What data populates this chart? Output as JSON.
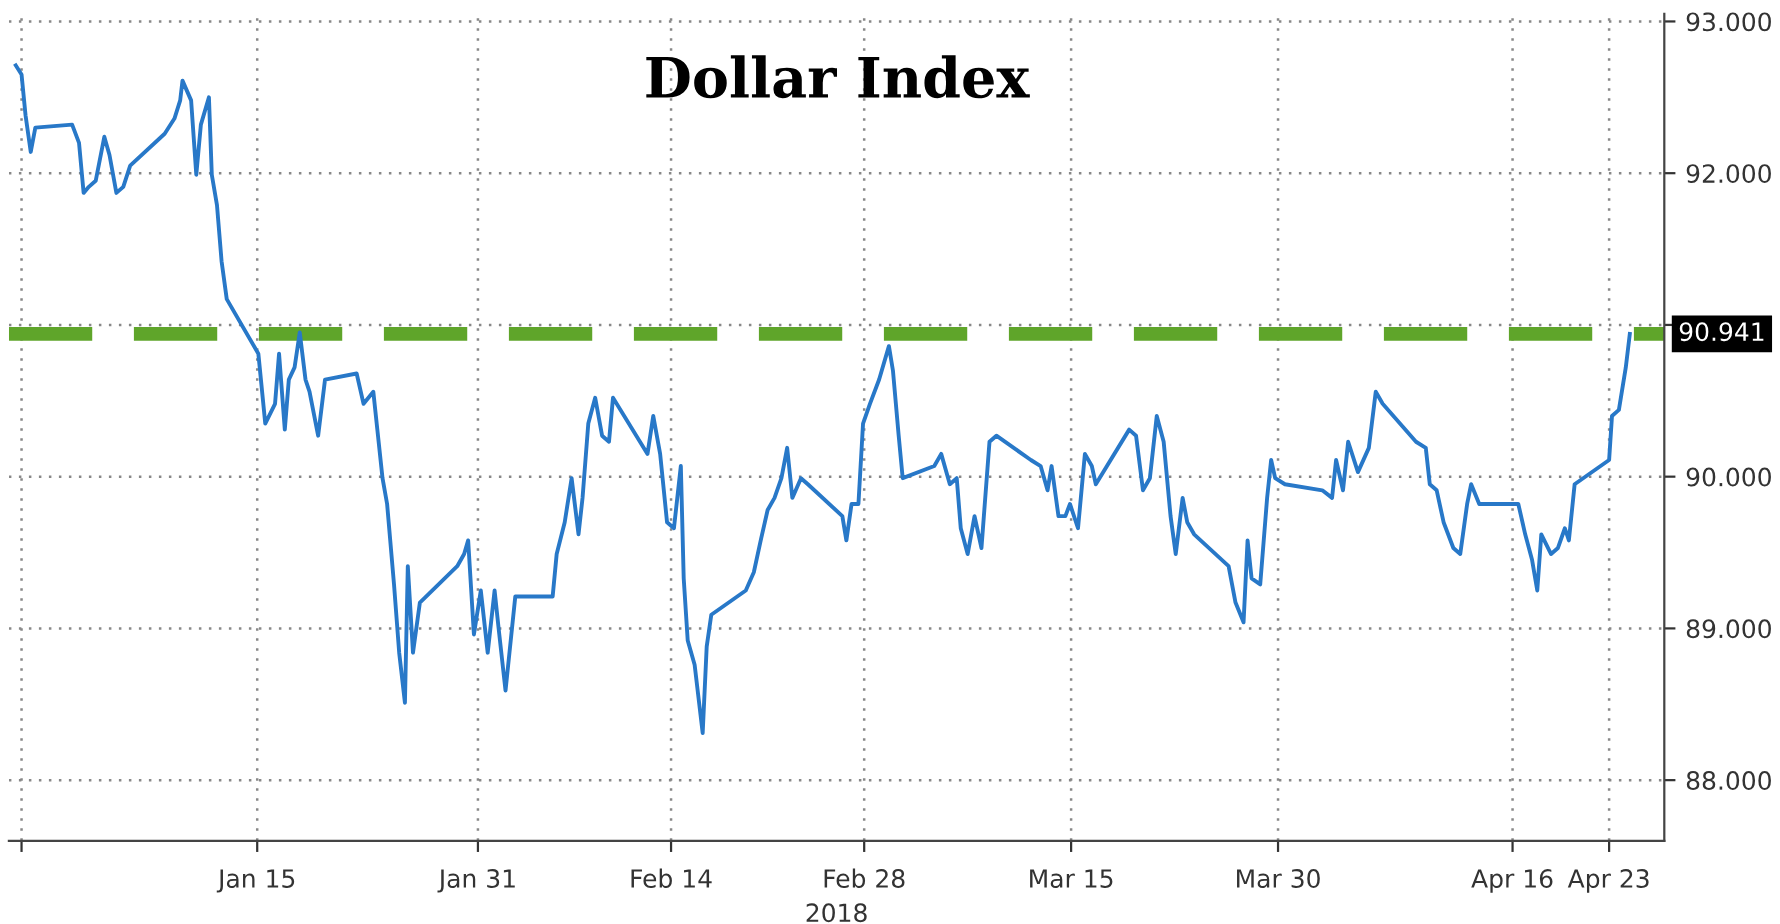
{
  "chart_data": {
    "type": "line",
    "title": "Dollar Index",
    "xlabel": "2018",
    "series": [
      {
        "color": "#2878c8",
        "x": [
          "2017-12-28T12:00",
          "2017-12-28T22:00",
          "2017-12-29T05:00",
          "2017-12-29T14:00",
          "2017-12-29T22:00",
          "2018-01-01T14:00",
          "2018-01-02T02:00",
          "2018-01-02T10:00",
          "2018-01-02T19:00",
          "2018-01-03T07:00",
          "2018-01-03T22:00",
          "2018-01-04T07:00",
          "2018-01-04T19:00",
          "2018-01-05T07:00",
          "2018-01-05T19:00",
          "2018-01-08T07:00",
          "2018-01-09T00:00",
          "2018-01-09T10:00",
          "2018-01-09T14:00",
          "2018-01-10T05:00",
          "2018-01-10T14:00",
          "2018-01-10T22:00",
          "2018-01-11T12:00",
          "2018-01-11T17:00",
          "2018-01-12T02:00",
          "2018-01-12T10:00",
          "2018-01-12T19:00",
          "2018-01-15T02:00",
          "2018-01-15T14:00",
          "2018-01-16T07:00",
          "2018-01-16T14:00",
          "2018-01-17T00:00",
          "2018-01-17T07:00",
          "2018-01-17T17:00",
          "2018-01-18T02:00",
          "2018-01-18T12:00",
          "2018-01-18T19:00",
          "2018-01-19T10:00",
          "2018-01-19T22:00",
          "2018-01-22T05:00",
          "2018-01-22T17:00",
          "2018-01-23T10:00",
          "2018-01-23T17:00",
          "2018-01-24T02:00",
          "2018-01-24T10:00",
          "2018-01-24T22:00",
          "2018-01-25T07:00",
          "2018-01-25T17:00",
          "2018-01-25T22:00",
          "2018-01-26T07:00",
          "2018-01-26T19:00",
          "2018-01-29T12:00",
          "2018-01-30T00:00",
          "2018-01-30T07:00",
          "2018-01-30T17:00",
          "2018-01-31T05:00",
          "2018-01-31T17:00",
          "2018-02-01T05:00",
          "2018-02-01T12:00",
          "2018-02-02T00:00",
          "2018-02-02T17:00",
          "2018-02-05T10:00",
          "2018-02-05T17:00",
          "2018-02-06T07:00",
          "2018-02-06T19:00",
          "2018-02-07T07:00",
          "2018-02-07T14:00",
          "2018-02-08T00:00",
          "2018-02-08T12:00",
          "2018-02-09T00:00",
          "2018-02-09T12:00",
          "2018-02-09T19:00",
          "2018-02-12T07:00",
          "2018-02-12T17:00",
          "2018-02-13T05:00",
          "2018-02-13T17:00",
          "2018-02-14T05:00",
          "2018-02-14T17:00",
          "2018-02-14T22:00",
          "2018-02-15T05:00",
          "2018-02-15T17:00",
          "2018-02-16T07:00",
          "2018-02-16T14:00",
          "2018-02-16T22:00",
          "2018-02-19T10:00",
          "2018-02-20T00:00",
          "2018-02-20T12:00",
          "2018-02-21T00:00",
          "2018-02-21T12:00",
          "2018-02-22T00:00",
          "2018-02-22T10:00",
          "2018-02-22T19:00",
          "2018-02-23T10:00",
          "2018-02-23T22:00",
          "2018-02-26T10:00",
          "2018-02-26T17:00",
          "2018-02-27T02:00",
          "2018-02-27T14:00",
          "2018-02-27T22:00",
          "2018-02-28T10:00",
          "2018-03-01T02:00",
          "2018-03-01T19:00",
          "2018-03-02T02:00",
          "2018-03-02T12:00",
          "2018-03-02T19:00",
          "2018-03-05T02:00",
          "2018-03-05T14:00",
          "2018-03-06T05:00",
          "2018-03-06T17:00",
          "2018-03-07T00:00",
          "2018-03-07T12:00",
          "2018-03-08T00:00",
          "2018-03-08T12:00",
          "2018-03-09T02:00",
          "2018-03-09T14:00",
          "2018-03-12T02:00",
          "2018-03-12T19:00",
          "2018-03-13T07:00",
          "2018-03-13T14:00",
          "2018-03-14T02:00",
          "2018-03-14T14:00",
          "2018-03-14T22:00",
          "2018-03-15T12:00",
          "2018-03-16T00:00",
          "2018-03-16T12:00",
          "2018-03-16T19:00",
          "2018-03-19T05:00",
          "2018-03-19T17:00",
          "2018-03-20T05:00",
          "2018-03-20T17:00",
          "2018-03-21T05:00",
          "2018-03-21T17:00",
          "2018-03-22T05:00",
          "2018-03-22T14:00",
          "2018-03-23T02:00",
          "2018-03-23T10:00",
          "2018-03-23T22:00",
          "2018-03-26T10:00",
          "2018-03-26T22:00",
          "2018-03-27T12:00",
          "2018-03-27T19:00",
          "2018-03-28T02:00",
          "2018-03-28T17:00",
          "2018-03-29T05:00",
          "2018-03-29T12:00",
          "2018-03-29T19:00",
          "2018-03-30T12:00",
          "2018-04-02T05:00",
          "2018-04-02T22:00",
          "2018-04-03T05:00",
          "2018-04-03T17:00",
          "2018-04-04T02:00",
          "2018-04-04T19:00",
          "2018-04-05T14:00",
          "2018-04-06T02:00",
          "2018-04-06T14:00",
          "2018-04-09T00:00",
          "2018-04-09T17:00",
          "2018-04-10T00:00",
          "2018-04-10T12:00",
          "2018-04-11T00:00",
          "2018-04-11T17:00",
          "2018-04-12T05:00",
          "2018-04-12T17:00",
          "2018-04-13T00:00",
          "2018-04-13T14:00",
          "2018-04-16T10:00",
          "2018-04-16T22:00",
          "2018-04-17T10:00",
          "2018-04-17T19:00",
          "2018-04-18T02:00",
          "2018-04-18T19:00",
          "2018-04-19T07:00",
          "2018-04-19T19:00",
          "2018-04-20T02:00",
          "2018-04-20T12:00",
          "2018-04-23T00:00",
          "2018-04-23T05:00",
          "2018-04-23T17:00",
          "2018-04-24T05:00",
          "2018-04-24T12:00"
        ],
        "values": [
          92.71,
          92.65,
          92.38,
          92.14,
          92.3,
          92.32,
          92.2,
          91.87,
          91.91,
          91.95,
          92.24,
          92.12,
          91.87,
          91.91,
          92.05,
          92.26,
          92.36,
          92.48,
          92.61,
          92.48,
          91.99,
          92.32,
          92.5,
          91.99,
          91.79,
          91.42,
          91.17,
          90.81,
          90.35,
          90.48,
          90.81,
          90.31,
          90.64,
          90.72,
          90.95,
          90.64,
          90.56,
          90.27,
          90.64,
          90.68,
          90.48,
          90.56,
          90.31,
          89.99,
          89.82,
          89.29,
          88.84,
          88.51,
          89.41,
          88.84,
          89.17,
          89.41,
          89.49,
          89.58,
          88.96,
          89.25,
          88.84,
          89.25,
          89.0,
          88.59,
          89.21,
          89.21,
          89.49,
          89.7,
          89.99,
          89.62,
          89.86,
          90.35,
          90.52,
          90.27,
          90.23,
          90.52,
          90.15,
          90.4,
          90.15,
          89.7,
          89.66,
          90.07,
          89.33,
          88.92,
          88.76,
          88.31,
          88.88,
          89.09,
          89.25,
          89.37,
          89.58,
          89.78,
          89.86,
          89.99,
          90.19,
          89.86,
          89.99,
          89.95,
          89.74,
          89.58,
          89.82,
          89.82,
          90.35,
          90.48,
          90.64,
          90.86,
          90.7,
          90.27,
          89.99,
          90.07,
          90.15,
          89.95,
          89.99,
          89.66,
          89.49,
          89.74,
          89.53,
          90.23,
          90.27,
          90.11,
          90.07,
          89.91,
          90.07,
          89.74,
          89.74,
          89.82,
          89.66,
          90.15,
          90.07,
          89.95,
          90.31,
          90.27,
          89.91,
          89.99,
          90.4,
          90.23,
          89.74,
          89.49,
          89.86,
          89.7,
          89.62,
          89.41,
          89.17,
          89.04,
          89.58,
          89.33,
          89.29,
          89.86,
          90.11,
          89.99,
          89.95,
          89.91,
          89.86,
          90.11,
          89.91,
          90.23,
          90.03,
          90.19,
          90.56,
          90.48,
          90.23,
          90.19,
          89.95,
          89.91,
          89.7,
          89.53,
          89.49,
          89.82,
          89.95,
          89.82,
          89.82,
          89.62,
          89.45,
          89.25,
          89.62,
          89.49,
          89.53,
          89.66,
          89.58,
          89.95,
          90.11,
          90.4,
          90.44,
          90.72,
          90.94
        ]
      }
    ],
    "xlim": [
      "2017-12-28",
      "2018-04-27"
    ],
    "xticks": [
      {
        "value": "2017-12-28T22:00",
        "label": null
      },
      {
        "value": "2018-01-15",
        "label": "Jan 15"
      },
      {
        "value": "2018-01-31",
        "label": "Jan 31"
      },
      {
        "value": "2018-02-14",
        "label": "Feb 14"
      },
      {
        "value": "2018-02-28",
        "label": "Feb 28"
      },
      {
        "value": "2018-03-15",
        "label": "Mar 15"
      },
      {
        "value": "2018-03-30",
        "label": "Mar 30"
      },
      {
        "value": "2018-04-16",
        "label": "Apr 16"
      },
      {
        "value": "2018-04-23",
        "label": "Apr 23"
      }
    ],
    "ylim": [
      87.6,
      93.05
    ],
    "yticks": [
      {
        "value": 88,
        "label": "88.000"
      },
      {
        "value": 89,
        "label": "89.000"
      },
      {
        "value": 90,
        "label": "90.000"
      },
      {
        "value": 91,
        "label": null
      },
      {
        "value": 92,
        "label": "92.000"
      },
      {
        "value": 93,
        "label": "93.000"
      }
    ],
    "ref_lines": [
      {
        "axis": "y",
        "value": 90.941,
        "label": "90.941",
        "color": "#5fa52a",
        "line_style": "dashed"
      }
    ],
    "grid": true,
    "legend": false,
    "marker": "none",
    "line_style": "solid"
  }
}
